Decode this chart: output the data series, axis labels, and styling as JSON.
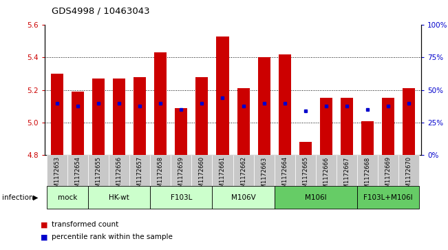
{
  "title": "GDS4998 / 10463043",
  "samples": [
    "GSM1172653",
    "GSM1172654",
    "GSM1172655",
    "GSM1172656",
    "GSM1172657",
    "GSM1172658",
    "GSM1172659",
    "GSM1172660",
    "GSM1172661",
    "GSM1172662",
    "GSM1172663",
    "GSM1172664",
    "GSM1172665",
    "GSM1172666",
    "GSM1172667",
    "GSM1172668",
    "GSM1172669",
    "GSM1172670"
  ],
  "red_values": [
    5.3,
    5.19,
    5.27,
    5.27,
    5.28,
    5.43,
    5.09,
    5.28,
    5.53,
    5.21,
    5.4,
    5.42,
    4.88,
    5.15,
    5.15,
    5.01,
    5.15,
    5.21
  ],
  "blue_values": [
    5.12,
    5.1,
    5.12,
    5.12,
    5.1,
    5.12,
    5.08,
    5.12,
    5.15,
    5.1,
    5.12,
    5.12,
    5.07,
    5.1,
    5.1,
    5.08,
    5.1,
    5.12
  ],
  "ylim_left": [
    4.8,
    5.6
  ],
  "ylim_right": [
    0,
    100
  ],
  "y_ticks_left": [
    4.8,
    5.0,
    5.2,
    5.4,
    5.6
  ],
  "y_ticks_right": [
    0,
    25,
    50,
    75,
    100
  ],
  "y_tick_right_labels": [
    "0%",
    "25%",
    "50%",
    "75%",
    "100%"
  ],
  "bar_bottom": 4.8,
  "bar_color": "#cc0000",
  "blue_color": "#0000cc",
  "tick_color_left": "#cc0000",
  "tick_color_right": "#0000cc",
  "bar_width": 0.6,
  "legend_red": "transformed count",
  "legend_blue": "percentile rank within the sample",
  "xticklabel_bg": "#c8c8c8",
  "groups": [
    {
      "label": "mock",
      "indices": [
        0,
        1
      ],
      "color": "#ccffcc"
    },
    {
      "label": "HK-wt",
      "indices": [
        2,
        3,
        4
      ],
      "color": "#ccffcc"
    },
    {
      "label": "F103L",
      "indices": [
        5,
        6,
        7
      ],
      "color": "#ccffcc"
    },
    {
      "label": "M106V",
      "indices": [
        8,
        9,
        10
      ],
      "color": "#ccffcc"
    },
    {
      "label": "M106I",
      "indices": [
        11,
        12,
        13,
        14
      ],
      "color": "#66cc66"
    },
    {
      "label": "F103L+M106I",
      "indices": [
        15,
        16,
        17
      ],
      "color": "#66cc66"
    }
  ],
  "infection_label": "infection",
  "dotted_lines": [
    5.0,
    5.2,
    5.4
  ]
}
